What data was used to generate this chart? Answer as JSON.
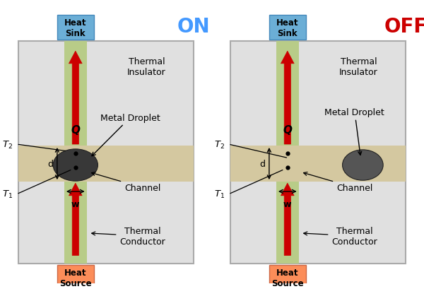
{
  "fig_width": 6.0,
  "fig_height": 4.1,
  "dpi": 100,
  "bg_color": "#ffffff",
  "panel_bg": "#e0e0e0",
  "panel_border": "#aaaaaa",
  "green_strip_color": "#b8cc88",
  "channel_color": "#d4c8a0",
  "heat_sink_color": "#6baed6",
  "heat_source_color": "#fc8d59",
  "droplet_color_on": "#383838",
  "droplet_color_off": "#555555",
  "arrow_color": "#cc0000",
  "text_color": "#000000",
  "on_label_color": "#4499ff",
  "off_label_color": "#cc0000",
  "on_label": "ON",
  "off_label": "OFF",
  "heat_sink_label": "Heat\nSink",
  "heat_source_label": "Heat\nSource",
  "thermal_insulator_label": "Thermal\nInsulator",
  "thermal_conductor_label": "Thermal\nConductor",
  "metal_droplet_label": "Metal Droplet",
  "channel_label": "Channel",
  "font_size_labels": 9,
  "font_size_on_off": 20
}
